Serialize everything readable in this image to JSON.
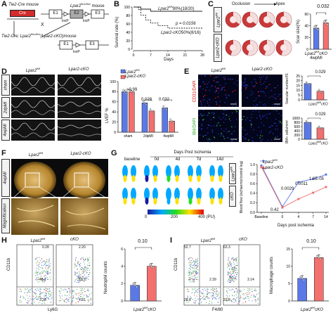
{
  "panels": {
    "A": {
      "letter": "A",
      "tie2_cre": "Tie2-Cre mouse",
      "cre": "Cre",
      "lpar2_flox": "Lpar2",
      "lpar2_flox_sup": "flox/flox",
      "lpar2_flox_suffix": " mouse",
      "ko_line": "Tie2-Cre; Lpar2",
      "ko_sup": "flox/flox",
      "ko_suffix": "(Lpar2-cKO)mouse",
      "e1": "E1",
      "e2": "E2",
      "e3": "E3",
      "loxp": "loxP",
      "x": "X"
    },
    "B": {
      "letter": "B",
      "ylabel": "Survival rate (%)",
      "xlabel": "Days",
      "legend_fl": "Lpar2",
      "legend_fl_sup": "fl/fl",
      "legend_fl_val": "90%(18/20)",
      "pvalue": "p = 0.0156",
      "legend_cko": "Lpar2-cKO",
      "legend_cko_val": "50%(8/16)",
      "yticks": [
        "100",
        "80",
        "60",
        "40",
        "20",
        "0"
      ],
      "xticks": [
        "0",
        "7",
        "14",
        "21",
        "28"
      ]
    },
    "C": {
      "letter": "C",
      "occlusion": "Occlusion",
      "apex": "Apex",
      "row1": "Lpar2",
      "row1_sup": "fl/fl",
      "row2": "Lpar2-cKO",
      "chart_title_p": "0.032",
      "ylabel": "Scar size(%)",
      "yticks": [
        "60",
        "40",
        "20",
        "0"
      ],
      "xcat": "Lpar2",
      "xcat_sup": "fl/fl",
      "xcat2": "cKO",
      "xsub": "4wpMI"
    },
    "D": {
      "letter": "D",
      "col1": "Lpar2",
      "col1_sup": "fl/fl",
      "col2": "Lpar2-cKO",
      "row_sham": "sham",
      "row_2dpmi": "2dpMI",
      "row_4wpmi": "4wpMI",
      "legend_fl": "Lpar2",
      "legend_fl_sup": "fl/fl",
      "legend_cko": "Lpar2-cKO",
      "ylabel": "LVEF %",
      "yticks": [
        "100",
        "80",
        "60",
        "40",
        "20",
        "0"
      ],
      "p1": ">0.99",
      "p2": "0.029",
      "p3": "0.032",
      "xcats": [
        "sham",
        "2dpMI",
        "4wpMI"
      ]
    },
    "E": {
      "letter": "E",
      "col1": "Lpar2",
      "col1_sup": "fl/fl",
      "col2": "Lpar2-cKO",
      "row1": "CD31/DAPI",
      "row2": "IB4/DAPI",
      "p1": "0.029",
      "p2": "0.029",
      "ylabel1": "Vascular number/IS",
      "ylabel2": "IB4+ cells/mm²",
      "yticks1": [
        "25",
        "20",
        "15",
        "10",
        "5",
        "0"
      ],
      "yticks2": [
        "1000",
        "800",
        "600",
        "400",
        "200",
        "0"
      ],
      "xcat": "Lpar2",
      "xcat_sup": "fl/fl",
      "xcat2": "cKO"
    },
    "F": {
      "letter": "F",
      "col1": "Lpar2",
      "col1_sup": "fl/fl",
      "col2": "Lpar2-cKO",
      "row1": "4wpMI",
      "row2": "Magnification"
    },
    "G": {
      "letter": "G",
      "header": "Days Post Ischemia",
      "baseline": "baseline",
      "days": [
        "0d",
        "4d",
        "7d",
        "14d"
      ],
      "row1": "Lpar2",
      "row1_sup": "fl/fl",
      "row2": "cKO",
      "cb_min": "0",
      "cb_mid": "200",
      "cb_max": "400 (PU)",
      "legend_fl": "Lpar2",
      "legend_fl_sup": "fl/fl",
      "legend_cko": "Lpar2-cKO",
      "ylabel": "Blood flow (ischaemic/control leg)",
      "xlabel": "Days post ischemia",
      "xticks": [
        "Baseline",
        "0",
        "4",
        "7",
        "14"
      ],
      "yticks": [
        "1.0",
        "0.8",
        "0.6",
        "0.4",
        "0.2",
        "0.0"
      ],
      "pvals": [
        "0.42",
        "0.0029",
        "0.0011",
        "1.0E-05"
      ]
    },
    "H": {
      "letter": "H",
      "title1": "Lpar2",
      "title1_sup": "fl/fl",
      "title2": "cKO",
      "yaxis": "CD11b",
      "xaxis": "Ly6G",
      "q1": [
        "0.28",
        "48.1",
        "3.38"
      ],
      "q2": [
        "2.20",
        "51.1",
        "4.81"
      ],
      "p": "0.10",
      "ylabel": "Neutrophil counts",
      "yticks": [
        "6",
        "4",
        "2",
        "0"
      ],
      "xcat": "Lpar2",
      "xcat_sup": "fl/fl",
      "xcat2": "cKO"
    },
    "I": {
      "letter": "I",
      "title1": "Lpar2",
      "title1_sup": "fl/fl",
      "title2": "cKO",
      "yaxis": "CD11b",
      "xaxis": "F4/80",
      "q1": [
        "52.7",
        "2.39",
        "28.8"
      ],
      "q2": [
        "63.3",
        "3.14",
        "23.6"
      ],
      "p": "0.10",
      "ylabel": "Macrophage counts",
      "yticks": [
        "15",
        "10",
        "5",
        "0"
      ],
      "xcat": "Lpar2",
      "xcat_sup": "fl/fl",
      "xcat2": "cKO"
    }
  },
  "colors": {
    "fl": "#5b79e6",
    "cko": "#f2706e",
    "red": "#d32020"
  },
  "chart_data": [
    {
      "type": "line",
      "title": "",
      "xlabel": "Days",
      "ylabel": "Survival rate (%)",
      "ylim": [
        0,
        100
      ],
      "series": [
        {
          "name": "Lpar2fl/fl",
          "x": [
            0,
            3,
            7,
            28
          ],
          "y": [
            100,
            95,
            90,
            90
          ]
        },
        {
          "name": "Lpar2-cKO",
          "x": [
            0,
            2,
            3,
            5,
            7,
            10,
            14,
            28
          ],
          "y": [
            100,
            94,
            81,
            69,
            62,
            56,
            50,
            50
          ]
        }
      ]
    },
    {
      "type": "bar",
      "title": "",
      "xlabel": "4wpMI",
      "ylabel": "Scar size(%)",
      "ylim": [
        0,
        60
      ],
      "categories": [
        "Lpar2fl/fl",
        "cKO"
      ],
      "values": [
        36,
        45
      ]
    },
    {
      "type": "bar",
      "title": "",
      "xlabel": "",
      "ylabel": "LVEF %",
      "ylim": [
        0,
        100
      ],
      "categories": [
        "sham",
        "2dpMI",
        "4wpMI"
      ],
      "series": [
        {
          "name": "Lpar2fl/fl",
          "values": [
            80,
            58,
            48
          ]
        },
        {
          "name": "Lpar2-cKO",
          "values": [
            80,
            42,
            22
          ]
        }
      ]
    },
    {
      "type": "bar",
      "title": "",
      "xlabel": "",
      "ylabel": "Vascular number/IS",
      "ylim": [
        0,
        25
      ],
      "categories": [
        "Lpar2fl/fl",
        "cKO"
      ],
      "values": [
        17,
        9
      ]
    },
    {
      "type": "bar",
      "title": "",
      "xlabel": "",
      "ylabel": "IB4+ cells/mm²",
      "ylim": [
        0,
        1000
      ],
      "categories": [
        "Lpar2fl/fl",
        "cKO"
      ],
      "values": [
        800,
        540
      ]
    },
    {
      "type": "line",
      "title": "",
      "xlabel": "Days post ischemia",
      "ylabel": "Blood flow (ischaemic/control leg)",
      "ylim": [
        0,
        1.0
      ],
      "categories": [
        "Baseline",
        "0",
        "4",
        "7",
        "14"
      ],
      "series": [
        {
          "name": "Lpar2fl/fl",
          "values": [
            0.98,
            0.12,
            0.63,
            0.7,
            0.79
          ]
        },
        {
          "name": "Lpar2-cKO",
          "values": [
            0.95,
            0.1,
            0.28,
            0.41,
            0.53
          ]
        }
      ]
    },
    {
      "type": "bar",
      "title": "",
      "xlabel": "",
      "ylabel": "Neutrophil counts",
      "ylim": [
        0,
        6
      ],
      "categories": [
        "Lpar2fl/fl",
        "cKO"
      ],
      "values": [
        1.8,
        4.0
      ]
    },
    {
      "type": "bar",
      "title": "",
      "xlabel": "",
      "ylabel": "Macrophage counts",
      "ylim": [
        0,
        15
      ],
      "categories": [
        "Lpar2fl/fl",
        "cKO"
      ],
      "values": [
        6.5,
        12.5
      ]
    }
  ]
}
